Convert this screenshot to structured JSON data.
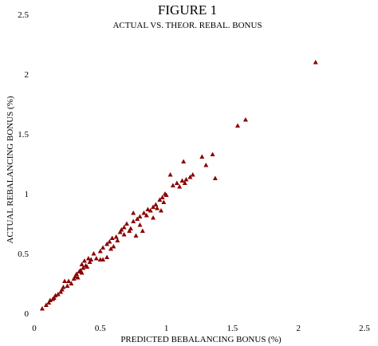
{
  "chart_data": {
    "type": "scatter",
    "title": "FIGURE 1",
    "subtitle": "ACTUAL VS. THEOR. REBAL. BONUS",
    "xlabel": "PREDICTED BEBALANCING BONUS (%)",
    "ylabel": "ACTUAL REBALANCING BONUS (%)",
    "xlim": [
      0,
      2.5
    ],
    "ylim": [
      0,
      2.5
    ],
    "x_ticks": [
      "0",
      "0.5",
      "1",
      "1.5",
      "2",
      "2.5"
    ],
    "y_ticks": [
      "0",
      "0.5",
      "1",
      "1.5",
      "2",
      "2.5"
    ],
    "grid": false,
    "marker": "triangle",
    "marker_color": "#8b0000",
    "points": [
      [
        0.06,
        0.04
      ],
      [
        0.09,
        0.07
      ],
      [
        0.11,
        0.09
      ],
      [
        0.12,
        0.11
      ],
      [
        0.14,
        0.12
      ],
      [
        0.15,
        0.13
      ],
      [
        0.16,
        0.15
      ],
      [
        0.18,
        0.16
      ],
      [
        0.2,
        0.18
      ],
      [
        0.21,
        0.2
      ],
      [
        0.22,
        0.22
      ],
      [
        0.23,
        0.27
      ],
      [
        0.25,
        0.23
      ],
      [
        0.26,
        0.27
      ],
      [
        0.28,
        0.25
      ],
      [
        0.3,
        0.29
      ],
      [
        0.31,
        0.31
      ],
      [
        0.32,
        0.33
      ],
      [
        0.33,
        0.3
      ],
      [
        0.34,
        0.35
      ],
      [
        0.35,
        0.36
      ],
      [
        0.36,
        0.34
      ],
      [
        0.36,
        0.41
      ],
      [
        0.37,
        0.38
      ],
      [
        0.38,
        0.44
      ],
      [
        0.39,
        0.4
      ],
      [
        0.4,
        0.39
      ],
      [
        0.41,
        0.46
      ],
      [
        0.42,
        0.43
      ],
      [
        0.43,
        0.45
      ],
      [
        0.45,
        0.5
      ],
      [
        0.47,
        0.46
      ],
      [
        0.5,
        0.45
      ],
      [
        0.5,
        0.52
      ],
      [
        0.52,
        0.45
      ],
      [
        0.52,
        0.55
      ],
      [
        0.55,
        0.47
      ],
      [
        0.55,
        0.58
      ],
      [
        0.57,
        0.6
      ],
      [
        0.58,
        0.54
      ],
      [
        0.59,
        0.63
      ],
      [
        0.6,
        0.56
      ],
      [
        0.62,
        0.64
      ],
      [
        0.63,
        0.61
      ],
      [
        0.65,
        0.68
      ],
      [
        0.66,
        0.7
      ],
      [
        0.68,
        0.72
      ],
      [
        0.68,
        0.66
      ],
      [
        0.7,
        0.75
      ],
      [
        0.72,
        0.69
      ],
      [
        0.73,
        0.71
      ],
      [
        0.75,
        0.77
      ],
      [
        0.75,
        0.84
      ],
      [
        0.77,
        0.65
      ],
      [
        0.78,
        0.79
      ],
      [
        0.8,
        0.74
      ],
      [
        0.8,
        0.81
      ],
      [
        0.82,
        0.69
      ],
      [
        0.83,
        0.84
      ],
      [
        0.85,
        0.82
      ],
      [
        0.86,
        0.87
      ],
      [
        0.88,
        0.86
      ],
      [
        0.9,
        0.89
      ],
      [
        0.9,
        0.8
      ],
      [
        0.92,
        0.91
      ],
      [
        0.93,
        0.88
      ],
      [
        0.95,
        0.95
      ],
      [
        0.96,
        0.86
      ],
      [
        0.97,
        0.97
      ],
      [
        0.98,
        0.93
      ],
      [
        0.99,
        1.0
      ],
      [
        1.0,
        0.99
      ],
      [
        1.03,
        1.16
      ],
      [
        1.05,
        1.07
      ],
      [
        1.08,
        1.09
      ],
      [
        1.1,
        1.06
      ],
      [
        1.12,
        1.11
      ],
      [
        1.13,
        1.27
      ],
      [
        1.14,
        1.09
      ],
      [
        1.15,
        1.12
      ],
      [
        1.18,
        1.14
      ],
      [
        1.2,
        1.16
      ],
      [
        1.27,
        1.31
      ],
      [
        1.3,
        1.24
      ],
      [
        1.35,
        1.33
      ],
      [
        1.37,
        1.13
      ],
      [
        1.54,
        1.57
      ],
      [
        1.6,
        1.62
      ],
      [
        2.13,
        2.1
      ]
    ]
  }
}
